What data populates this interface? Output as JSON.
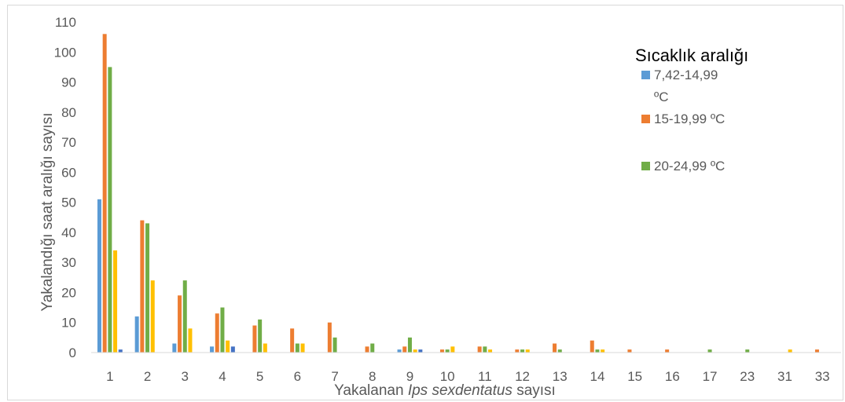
{
  "chart_data": {
    "type": "bar",
    "title": "",
    "xlabel": {
      "prefix": "Yakalanan ",
      "italic": "Ips sexdentatus",
      "suffix": " sayısı"
    },
    "ylabel": "Yakalandığı saat aralığı sayısı",
    "ylim": [
      0,
      110
    ],
    "yticks": [
      0,
      10,
      20,
      30,
      40,
      50,
      60,
      70,
      80,
      90,
      100,
      110
    ],
    "categories": [
      "1",
      "2",
      "3",
      "4",
      "5",
      "6",
      "7",
      "8",
      "9",
      "10",
      "11",
      "12",
      "13",
      "14",
      "15",
      "16",
      "17",
      "23",
      "31",
      "33"
    ],
    "legend": {
      "title": "Sıcaklık aralığı",
      "position": "top-right"
    },
    "series": [
      {
        "name": "7,42-14,99 ºC",
        "color": "#5b9bd5",
        "values": [
          51,
          12,
          3,
          2,
          0,
          0,
          0,
          0,
          1,
          0,
          0,
          0,
          0,
          0,
          0,
          0,
          0,
          0,
          0,
          0
        ]
      },
      {
        "name": "15-19,99 ºC",
        "color": "#ed7d31",
        "values": [
          106,
          44,
          19,
          13,
          9,
          8,
          10,
          2,
          2,
          1,
          2,
          1,
          3,
          4,
          1,
          1,
          0,
          0,
          0,
          1
        ]
      },
      {
        "name": "20-24,99 ºC",
        "color": "#70ad47",
        "values": [
          95,
          43,
          24,
          15,
          11,
          3,
          5,
          3,
          5,
          1,
          2,
          1,
          1,
          1,
          0,
          0,
          1,
          1,
          0,
          0
        ]
      },
      {
        "name": "",
        "color": "#ffc000",
        "values": [
          34,
          24,
          8,
          4,
          3,
          3,
          0,
          0,
          1,
          2,
          1,
          1,
          0,
          1,
          0,
          0,
          0,
          0,
          1,
          0
        ]
      },
      {
        "name": "",
        "color": "#4472c4",
        "values": [
          1,
          0,
          0,
          2,
          0,
          0,
          0,
          0,
          1,
          0,
          0,
          0,
          0,
          0,
          0,
          0,
          0,
          0,
          0,
          0
        ]
      }
    ]
  }
}
